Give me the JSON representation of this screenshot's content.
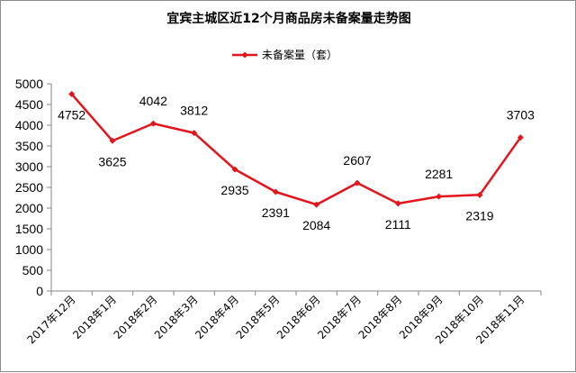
{
  "chart_data": {
    "type": "line",
    "title": "宜宾主城区近12个月商品房未备案量走势图",
    "categories": [
      "2017年12月",
      "2018年1月",
      "2018年2月",
      "2018年3月",
      "2018年4月",
      "2018年5月",
      "2018年6月",
      "2018年7月",
      "2018年8月",
      "2018年9月",
      "2018年10月",
      "2018年11月"
    ],
    "series": [
      {
        "name": "未备案量（套）",
        "values": [
          4752,
          3625,
          4042,
          3812,
          2935,
          2391,
          2084,
          2607,
          2111,
          2281,
          2319,
          3703
        ],
        "color": "#e3141b"
      }
    ],
    "ylim": [
      0,
      5000
    ],
    "ytick_step": 500,
    "grid": false,
    "legend_position": "top-center",
    "data_labels": true
  }
}
